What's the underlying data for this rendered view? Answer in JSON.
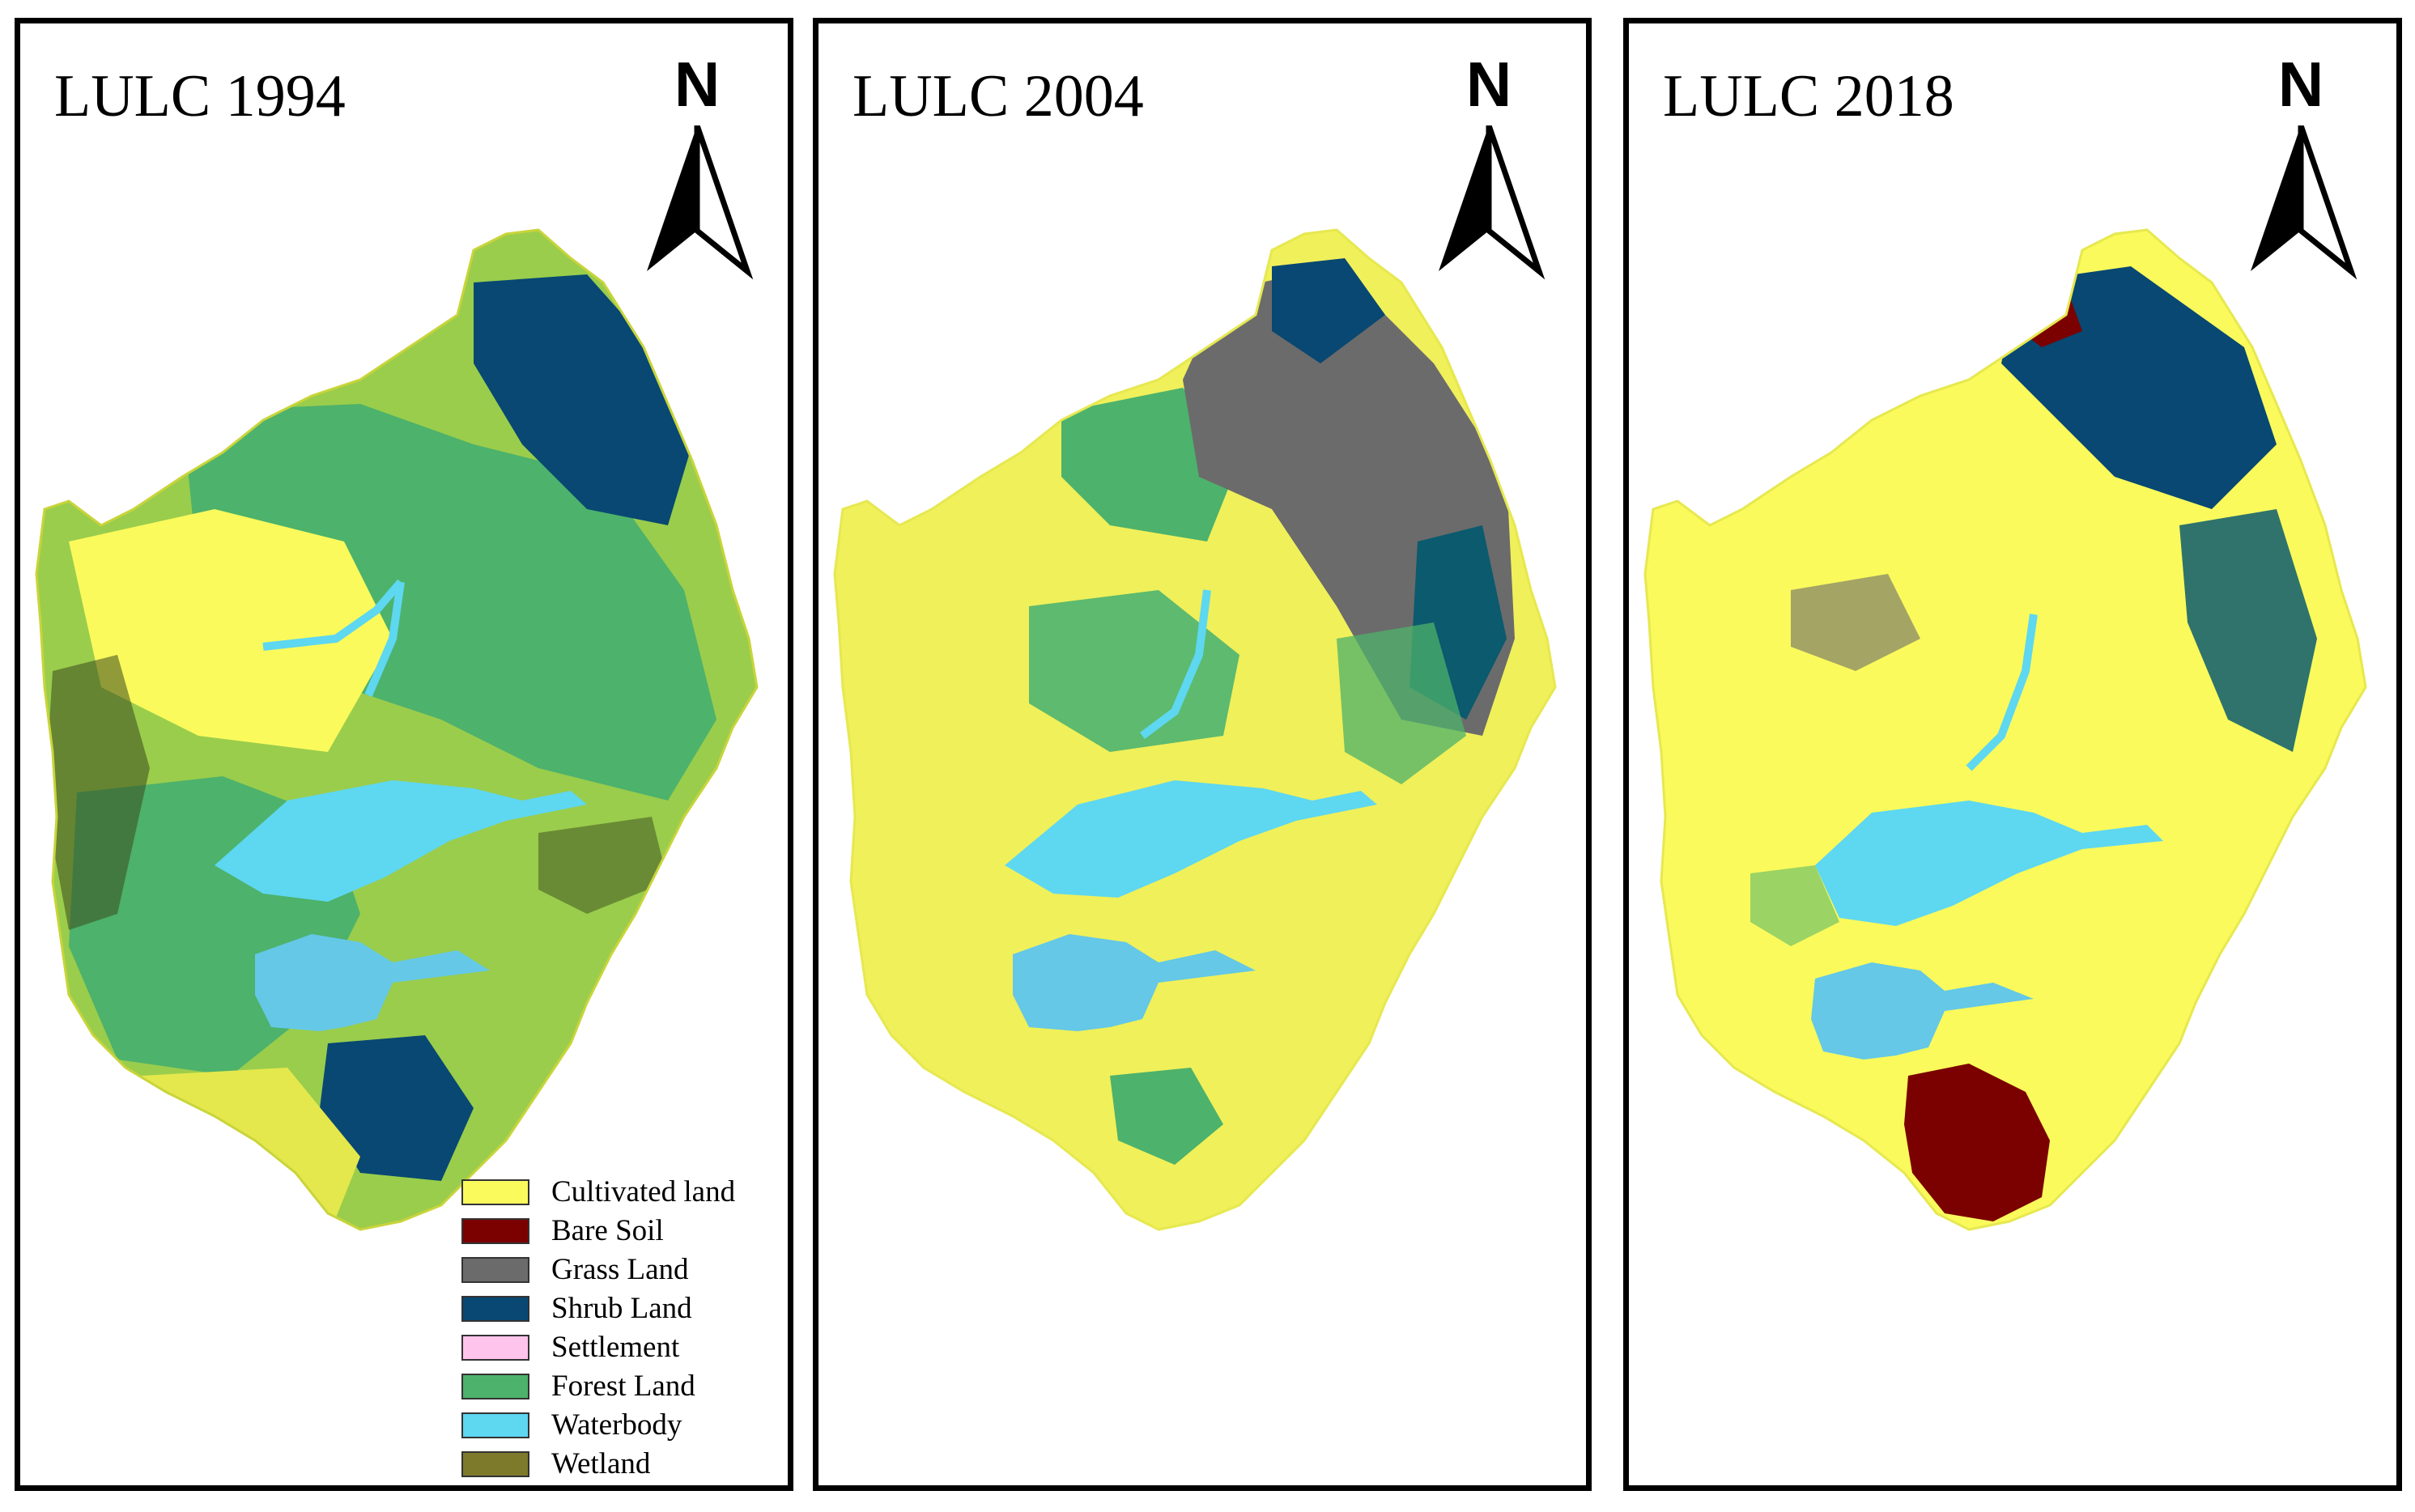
{
  "legend": {
    "items": [
      {
        "label": "Cultivated land",
        "color": "#FAFA5C"
      },
      {
        "label": "Bare Soil",
        "color": "#7B0000"
      },
      {
        "label": "Grass Land",
        "color": "#6B6B6B"
      },
      {
        "label": "Shrub Land",
        "color": "#084872"
      },
      {
        "label": "Settlement",
        "color": "#FFC4EC"
      },
      {
        "label": "Forest Land",
        "color": "#4DB26B"
      },
      {
        "label": "Waterbody",
        "color": "#5ED7F0"
      },
      {
        "label": "Wetland",
        "color": "#7E7A2C"
      }
    ]
  },
  "north_arrow": {
    "letter": "N"
  },
  "panels": [
    {
      "title": "LULC 1994",
      "year": "1994",
      "dominant_cover": [
        "Forest Land",
        "Cultivated land",
        "Shrub Land",
        "Waterbody"
      ]
    },
    {
      "title": "LULC 2004",
      "year": "2004",
      "dominant_cover": [
        "Cultivated land",
        "Forest Land",
        "Grass Land",
        "Shrub Land",
        "Waterbody"
      ]
    },
    {
      "title": "LULC 2018",
      "year": "2018",
      "dominant_cover": [
        "Cultivated land",
        "Shrub Land",
        "Bare Soil",
        "Waterbody"
      ]
    }
  ]
}
